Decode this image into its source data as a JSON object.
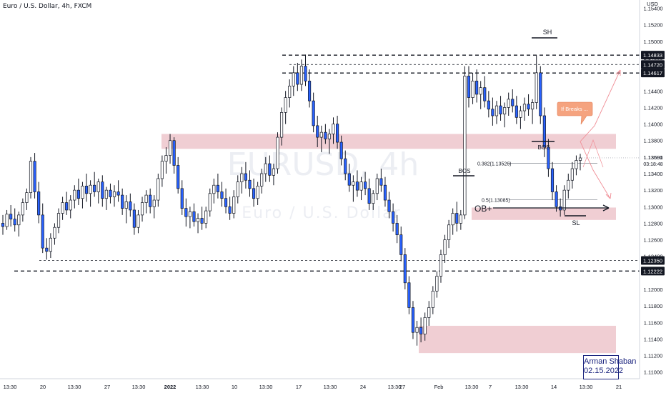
{
  "header": {
    "title": "Euro / U.S. Dollar, 4h, FXCM"
  },
  "watermark": {
    "symbol": "EURUSD, 4h",
    "name": "Euro / U.S. Dollar"
  },
  "signature": {
    "name": "Arman Shaban",
    "date": "02.15.2022"
  },
  "colors": {
    "bull": "#ffffff",
    "bear": "#2962ff",
    "zone": "#e8b4bc",
    "tag": "#131722",
    "callout": "#f5a37f"
  },
  "chart_data": {
    "type": "candlestick",
    "symbol": "EURUSD",
    "timeframe": "4h",
    "currency": "USD",
    "ylim": [
      1.1092,
      1.155
    ],
    "y_ticks": [
      "1.15400",
      "1.15200",
      "1.15000",
      "1.14800",
      "1.14600",
      "1.14400",
      "1.14200",
      "1.14000",
      "1.13800",
      "1.13600",
      "1.13400",
      "1.13200",
      "1.13000",
      "1.12800",
      "1.12600",
      "1.12400",
      "1.12200",
      "1.12000",
      "1.11800",
      "1.11600",
      "1.11400",
      "1.11200",
      "1.11000"
    ],
    "x_ticks": [
      "13:30",
      "20",
      "13:30",
      "27",
      "13:30",
      "2022",
      "13:30",
      "10",
      "13:30",
      "17",
      "13:30",
      "24",
      "13:30",
      "27",
      "Feb",
      "13:30",
      "7",
      "13:30",
      "14",
      "13:30",
      "21"
    ],
    "price_tags": [
      {
        "label": "1.14833",
        "value": 1.14833
      },
      {
        "label": "1.14720",
        "value": 1.1472
      },
      {
        "label": "1.14617",
        "value": 1.14617
      },
      {
        "label": "1.12350",
        "value": 1.1235
      },
      {
        "label": "1.12222",
        "value": 1.12222
      }
    ],
    "current_price": {
      "label": "1.13591",
      "countdown": "03:18:48",
      "value": 1.13591
    },
    "levels": [
      {
        "value": 1.14833,
        "style": "dashed"
      },
      {
        "value": 1.1472,
        "style": "dashed-thin"
      },
      {
        "value": 1.14617,
        "style": "dashed"
      },
      {
        "value": 1.1235,
        "style": "dashed-thin"
      },
      {
        "value": 1.12222,
        "style": "dashed"
      }
    ],
    "zones": [
      {
        "name": "supply",
        "top": 1.1388,
        "bottom": 1.137
      },
      {
        "name": "ob",
        "top": 1.1299,
        "bottom": 1.1284
      },
      {
        "name": "demand",
        "top": 1.1156,
        "bottom": 1.1123
      }
    ],
    "fib_levels": [
      {
        "label": "0.382(1.13526)",
        "value": 1.13526
      },
      {
        "label": "0.5(1.13085)",
        "value": 1.13085
      }
    ],
    "annotations": {
      "sh": "SH",
      "bos1": "BOS",
      "bos2": "BOS",
      "sl": "SL",
      "ob": "OB+",
      "callout": "If Breaks ..."
    },
    "candles": [
      [
        1.128,
        1.129,
        1.1266,
        1.1276
      ],
      [
        1.1276,
        1.1296,
        1.1272,
        1.1291
      ],
      [
        1.1291,
        1.1302,
        1.1276,
        1.1285
      ],
      [
        1.1285,
        1.1298,
        1.127,
        1.1278
      ],
      [
        1.1278,
        1.1294,
        1.1264,
        1.129
      ],
      [
        1.129,
        1.131,
        1.1282,
        1.1305
      ],
      [
        1.1305,
        1.1322,
        1.1296,
        1.1317
      ],
      [
        1.1317,
        1.136,
        1.131,
        1.1355
      ],
      [
        1.1355,
        1.1365,
        1.131,
        1.1318
      ],
      [
        1.1318,
        1.133,
        1.128,
        1.129
      ],
      [
        1.129,
        1.1304,
        1.1244,
        1.125
      ],
      [
        1.125,
        1.1262,
        1.1236,
        1.1246
      ],
      [
        1.1246,
        1.1268,
        1.1238,
        1.1262
      ],
      [
        1.1262,
        1.128,
        1.1254,
        1.1275
      ],
      [
        1.1275,
        1.1298,
        1.1268,
        1.1292
      ],
      [
        1.1292,
        1.1312,
        1.1284,
        1.1305
      ],
      [
        1.1305,
        1.1318,
        1.129,
        1.1296
      ],
      [
        1.1296,
        1.1314,
        1.1286,
        1.1308
      ],
      [
        1.1308,
        1.1326,
        1.1298,
        1.132
      ],
      [
        1.132,
        1.1334,
        1.1302,
        1.131
      ],
      [
        1.131,
        1.133,
        1.1298,
        1.1325
      ],
      [
        1.1325,
        1.134,
        1.1306,
        1.1316
      ],
      [
        1.1316,
        1.1332,
        1.13,
        1.1326
      ],
      [
        1.1326,
        1.1342,
        1.1312,
        1.1318
      ],
      [
        1.1318,
        1.1334,
        1.1304,
        1.133
      ],
      [
        1.133,
        1.1338,
        1.13,
        1.131
      ],
      [
        1.131,
        1.1324,
        1.1296,
        1.132
      ],
      [
        1.132,
        1.1328,
        1.1304,
        1.1312
      ],
      [
        1.1312,
        1.1326,
        1.13,
        1.1318
      ],
      [
        1.1318,
        1.1332,
        1.1306,
        1.1314
      ],
      [
        1.1314,
        1.1322,
        1.129,
        1.1298
      ],
      [
        1.1298,
        1.1314,
        1.128,
        1.1306
      ],
      [
        1.1306,
        1.1316,
        1.1288,
        1.1296
      ],
      [
        1.1296,
        1.1304,
        1.1266,
        1.1275
      ],
      [
        1.1275,
        1.1296,
        1.1268,
        1.129
      ],
      [
        1.129,
        1.1312,
        1.1282,
        1.1305
      ],
      [
        1.1305,
        1.132,
        1.1292,
        1.1314
      ],
      [
        1.1314,
        1.1322,
        1.1292,
        1.13
      ],
      [
        1.13,
        1.1314,
        1.1286,
        1.1308
      ],
      [
        1.1308,
        1.134,
        1.13,
        1.1334
      ],
      [
        1.1334,
        1.1362,
        1.1324,
        1.1355
      ],
      [
        1.1355,
        1.1372,
        1.134,
        1.1362
      ],
      [
        1.1362,
        1.1388,
        1.1352,
        1.138
      ],
      [
        1.138,
        1.1384,
        1.134,
        1.135
      ],
      [
        1.135,
        1.136,
        1.1316,
        1.1322
      ],
      [
        1.1322,
        1.1332,
        1.129,
        1.1298
      ],
      [
        1.1298,
        1.131,
        1.1276,
        1.1288
      ],
      [
        1.1288,
        1.13,
        1.1274,
        1.1294
      ],
      [
        1.1294,
        1.1304,
        1.1276,
        1.1282
      ],
      [
        1.1282,
        1.1292,
        1.1268,
        1.1286
      ],
      [
        1.1286,
        1.13,
        1.1272,
        1.128
      ],
      [
        1.128,
        1.13,
        1.1274,
        1.1295
      ],
      [
        1.1295,
        1.1322,
        1.1288,
        1.1316
      ],
      [
        1.1316,
        1.1334,
        1.1304,
        1.1326
      ],
      [
        1.1326,
        1.134,
        1.131,
        1.1318
      ],
      [
        1.1318,
        1.133,
        1.13,
        1.131
      ],
      [
        1.131,
        1.1322,
        1.1292,
        1.13
      ],
      [
        1.13,
        1.1312,
        1.1284,
        1.1292
      ],
      [
        1.1292,
        1.132,
        1.1286,
        1.1312
      ],
      [
        1.1312,
        1.1338,
        1.1304,
        1.133
      ],
      [
        1.133,
        1.1348,
        1.1316,
        1.134
      ],
      [
        1.134,
        1.1354,
        1.1322,
        1.1332
      ],
      [
        1.1332,
        1.1344,
        1.1312,
        1.1322
      ],
      [
        1.1322,
        1.1334,
        1.13,
        1.131
      ],
      [
        1.131,
        1.133,
        1.1302,
        1.1325
      ],
      [
        1.1325,
        1.1346,
        1.1316,
        1.134
      ],
      [
        1.134,
        1.136,
        1.133,
        1.1352
      ],
      [
        1.1352,
        1.1362,
        1.133,
        1.1338
      ],
      [
        1.1338,
        1.1352,
        1.1326,
        1.1346
      ],
      [
        1.1346,
        1.139,
        1.134,
        1.1384
      ],
      [
        1.1384,
        1.142,
        1.1374,
        1.1414
      ],
      [
        1.1414,
        1.144,
        1.14,
        1.1432
      ],
      [
        1.1432,
        1.1454,
        1.142,
        1.1446
      ],
      [
        1.1446,
        1.147,
        1.1434,
        1.1462
      ],
      [
        1.1462,
        1.1474,
        1.144,
        1.1448
      ],
      [
        1.1448,
        1.1478,
        1.144,
        1.147
      ],
      [
        1.147,
        1.1484,
        1.1446,
        1.1452
      ],
      [
        1.1452,
        1.1466,
        1.142,
        1.1428
      ],
      [
        1.1428,
        1.1438,
        1.139,
        1.1398
      ],
      [
        1.1398,
        1.141,
        1.1372,
        1.1384
      ],
      [
        1.1384,
        1.1398,
        1.1366,
        1.139
      ],
      [
        1.139,
        1.14,
        1.1376,
        1.1382
      ],
      [
        1.1382,
        1.1394,
        1.1364,
        1.1388
      ],
      [
        1.1388,
        1.1408,
        1.1376,
        1.14
      ],
      [
        1.14,
        1.141,
        1.137,
        1.1378
      ],
      [
        1.1378,
        1.1386,
        1.135,
        1.1358
      ],
      [
        1.1358,
        1.1368,
        1.1332,
        1.134
      ],
      [
        1.134,
        1.1352,
        1.1318,
        1.1326
      ],
      [
        1.1326,
        1.1338,
        1.1306,
        1.133
      ],
      [
        1.133,
        1.1344,
        1.1312,
        1.132
      ],
      [
        1.132,
        1.1336,
        1.1308,
        1.133
      ],
      [
        1.133,
        1.1342,
        1.1314,
        1.1322
      ],
      [
        1.1322,
        1.1334,
        1.1296,
        1.1304
      ],
      [
        1.1304,
        1.132,
        1.1296,
        1.1316
      ],
      [
        1.1316,
        1.134,
        1.1308,
        1.1334
      ],
      [
        1.1334,
        1.1346,
        1.1318,
        1.1326
      ],
      [
        1.1326,
        1.1336,
        1.13,
        1.1308
      ],
      [
        1.1308,
        1.1318,
        1.1286,
        1.1294
      ],
      [
        1.1294,
        1.1304,
        1.127,
        1.128
      ],
      [
        1.128,
        1.129,
        1.1256,
        1.1266
      ],
      [
        1.1266,
        1.1276,
        1.1234,
        1.1242
      ],
      [
        1.1242,
        1.125,
        1.12,
        1.1208
      ],
      [
        1.1208,
        1.1216,
        1.117,
        1.1178
      ],
      [
        1.1178,
        1.1186,
        1.114,
        1.1148
      ],
      [
        1.1148,
        1.1162,
        1.1132,
        1.1154
      ],
      [
        1.1154,
        1.1166,
        1.1136,
        1.1146
      ],
      [
        1.1146,
        1.1172,
        1.1138,
        1.1166
      ],
      [
        1.1166,
        1.1186,
        1.1156,
        1.1178
      ],
      [
        1.1178,
        1.1204,
        1.117,
        1.1198
      ],
      [
        1.1198,
        1.1222,
        1.119,
        1.1216
      ],
      [
        1.1216,
        1.1248,
        1.1208,
        1.1242
      ],
      [
        1.1242,
        1.1266,
        1.1232,
        1.126
      ],
      [
        1.126,
        1.1284,
        1.125,
        1.1278
      ],
      [
        1.1278,
        1.1298,
        1.1266,
        1.1292
      ],
      [
        1.1292,
        1.1306,
        1.127,
        1.128
      ],
      [
        1.128,
        1.1296,
        1.1272,
        1.129
      ],
      [
        1.129,
        1.147,
        1.1285,
        1.1458
      ],
      [
        1.1458,
        1.147,
        1.142,
        1.1432
      ],
      [
        1.1432,
        1.1462,
        1.1424,
        1.1452
      ],
      [
        1.1452,
        1.1466,
        1.1426,
        1.1436
      ],
      [
        1.1436,
        1.1452,
        1.1418,
        1.1444
      ],
      [
        1.1444,
        1.1458,
        1.142,
        1.1428
      ],
      [
        1.1428,
        1.144,
        1.1408,
        1.1418
      ],
      [
        1.1418,
        1.1432,
        1.1398,
        1.141
      ],
      [
        1.141,
        1.1428,
        1.14,
        1.1422
      ],
      [
        1.1422,
        1.1434,
        1.1404,
        1.1412
      ],
      [
        1.1412,
        1.1426,
        1.1396,
        1.142
      ],
      [
        1.142,
        1.1438,
        1.141,
        1.143
      ],
      [
        1.143,
        1.1442,
        1.1414,
        1.1422
      ],
      [
        1.1422,
        1.1434,
        1.14,
        1.1408
      ],
      [
        1.1408,
        1.1422,
        1.1394,
        1.1416
      ],
      [
        1.1416,
        1.1432,
        1.1404,
        1.1424
      ],
      [
        1.1424,
        1.1436,
        1.141,
        1.1418
      ],
      [
        1.1418,
        1.143,
        1.14,
        1.1426
      ],
      [
        1.1426,
        1.1483,
        1.1418,
        1.1462
      ],
      [
        1.1462,
        1.147,
        1.14,
        1.141
      ],
      [
        1.141,
        1.142,
        1.136,
        1.1372
      ],
      [
        1.1372,
        1.1382,
        1.1336,
        1.1346
      ],
      [
        1.1346,
        1.1354,
        1.1308,
        1.1318
      ],
      [
        1.1318,
        1.1326,
        1.1294,
        1.13
      ],
      [
        1.13,
        1.131,
        1.1288,
        1.1296
      ],
      [
        1.1296,
        1.1326,
        1.129,
        1.132
      ],
      [
        1.132,
        1.134,
        1.131,
        1.1332
      ],
      [
        1.1332,
        1.1354,
        1.1322,
        1.1346
      ],
      [
        1.1346,
        1.1362,
        1.1338,
        1.1356
      ],
      [
        1.1356,
        1.1364,
        1.1344,
        1.1359
      ]
    ]
  }
}
